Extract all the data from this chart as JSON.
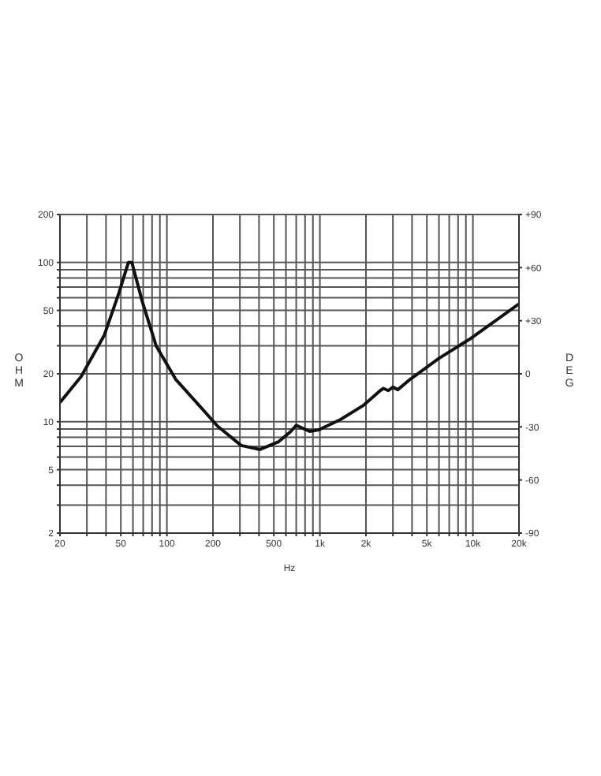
{
  "chart_data": {
    "type": "line",
    "xlabel": "Hz",
    "ylabel": "OHM",
    "y2label": "DEG",
    "log": "xy",
    "grid": true,
    "marker": "none",
    "line_style": "solid",
    "xlim": [
      20,
      20000
    ],
    "ylim": [
      2,
      200
    ],
    "y2lim": [
      -90,
      90
    ],
    "xticks": [
      20,
      {
        "value": 30,
        "label": null
      },
      {
        "value": 40,
        "label": null
      },
      50,
      {
        "value": 60,
        "label": null
      },
      {
        "value": 70,
        "label": null
      },
      {
        "value": 80,
        "label": null
      },
      {
        "value": 90,
        "label": null
      },
      100,
      200,
      {
        "value": 300,
        "label": null
      },
      {
        "value": 400,
        "label": null
      },
      500,
      {
        "value": 600,
        "label": null
      },
      {
        "value": 700,
        "label": null
      },
      {
        "value": 800,
        "label": null
      },
      {
        "value": 900,
        "label": null
      },
      {
        "value": 1000,
        "label": "1k"
      },
      {
        "value": 2000,
        "label": "2k"
      },
      {
        "value": 3000,
        "label": null
      },
      {
        "value": 4000,
        "label": null
      },
      {
        "value": 5000,
        "label": "5k"
      },
      {
        "value": 6000,
        "label": null
      },
      {
        "value": 7000,
        "label": null
      },
      {
        "value": 8000,
        "label": null
      },
      {
        "value": 9000,
        "label": null
      },
      {
        "value": 10000,
        "label": "10k"
      },
      {
        "value": 20000,
        "label": "20k"
      }
    ],
    "yticks": [
      2,
      {
        "value": 3,
        "label": null
      },
      {
        "value": 4,
        "label": null
      },
      5,
      {
        "value": 6,
        "label": null
      },
      {
        "value": 7,
        "label": null
      },
      {
        "value": 8,
        "label": null
      },
      {
        "value": 9,
        "label": null
      },
      10,
      20,
      {
        "value": 30,
        "label": null
      },
      {
        "value": 40,
        "label": null
      },
      50,
      {
        "value": 60,
        "label": null
      },
      {
        "value": 70,
        "label": null
      },
      {
        "value": 80,
        "label": null
      },
      {
        "value": 90,
        "label": null
      },
      100,
      200
    ],
    "y2ticks": [
      -90,
      -60,
      -30,
      0,
      {
        "value": 30,
        "label": "+30"
      },
      {
        "value": 60,
        "label": "+60"
      },
      {
        "value": 90,
        "label": "+90"
      }
    ],
    "series": [
      {
        "color": "#111111",
        "x": [
          20,
          27.5,
          39,
          48.5,
          56,
          59,
          69,
          85,
          114,
          162,
          214,
          306,
          406,
          538,
          646,
          700,
          857,
          984,
          1356,
          1930,
          2480,
          2600,
          2800,
          3000,
          3230,
          3900,
          6000,
          9800,
          20000
        ],
        "values": [
          13.2,
          19.2,
          35,
          64,
          100,
          100,
          57,
          30,
          18.5,
          12.7,
          9.4,
          7.1,
          6.7,
          7.5,
          8.7,
          9.5,
          8.7,
          8.9,
          10.3,
          12.7,
          15.7,
          16.2,
          15.7,
          16.5,
          15.9,
          18.5,
          25,
          33.6,
          55
        ]
      }
    ]
  }
}
